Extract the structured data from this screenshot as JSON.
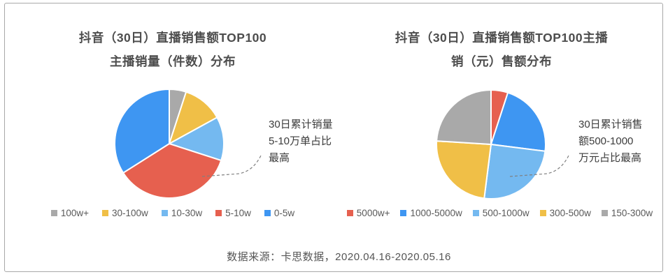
{
  "page": {
    "source_note": "数据来源：卡思数据，2020.04.16-2020.05.16"
  },
  "colors": {
    "blue": "#3e96f2",
    "light_blue": "#74b9f0",
    "red": "#e6604f",
    "yellow": "#f0bf47",
    "gray": "#a9a9a9"
  },
  "charts": [
    {
      "title_line1": "抖音（30日）直播销售额TOP100",
      "title_line2": "主播销量（件数）分布",
      "annotation": "30日累计销量\n5-10万单占比\n最高",
      "chart_data": {
        "type": "pie",
        "labels": [
          "100w+",
          "30-100w",
          "10-30w",
          "5-10w",
          "0-5w"
        ],
        "values": [
          5,
          12,
          13,
          36,
          34
        ],
        "unit": "percent_estimated",
        "colors": [
          "gray",
          "yellow",
          "light_blue",
          "red",
          "blue"
        ],
        "start_angle_deg": 0,
        "direction": "clockwise",
        "legend_position": "bottom",
        "highlight": "5-10w"
      }
    },
    {
      "title_line1": "抖音（30日）直播销售额TOP100主播",
      "title_line2": "销（元）售额分布",
      "annotation": "30日累计销售\n额500-1000\n万元占比最高",
      "chart_data": {
        "type": "pie",
        "labels": [
          "5000w+",
          "1000-5000w",
          "500-1000w",
          "300-500w",
          "150-300w"
        ],
        "values": [
          5,
          22,
          25,
          24,
          24
        ],
        "unit": "percent_estimated",
        "colors": [
          "red",
          "blue",
          "light_blue",
          "yellow",
          "gray"
        ],
        "start_angle_deg": 0,
        "direction": "clockwise",
        "legend_position": "bottom",
        "highlight": "500-1000w"
      }
    }
  ]
}
